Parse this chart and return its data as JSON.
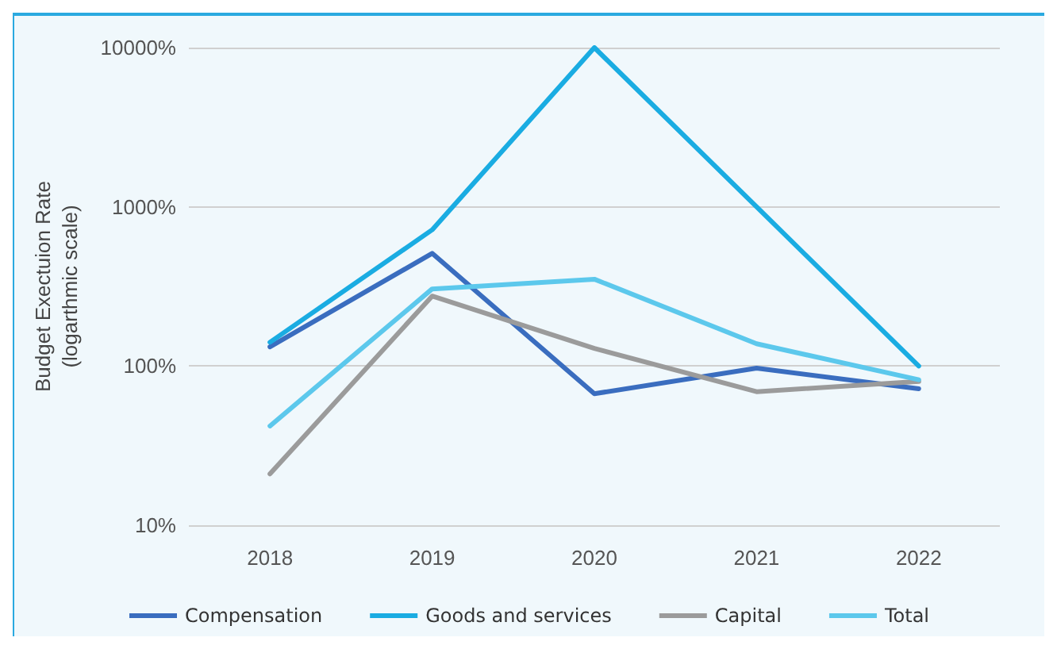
{
  "chart_data": {
    "type": "line",
    "ylabel": "Budget Exectuion Rate\n(logarthmic scale)",
    "categories": [
      "2018",
      "2019",
      "2020",
      "2021",
      "2022"
    ],
    "series": [
      {
        "name": "Compensation",
        "color": "#3a6dbf",
        "values": [
          132,
          510,
          67,
          97,
          72
        ]
      },
      {
        "name": "Goods and services",
        "color": "#1aace2",
        "values": [
          141,
          717,
          10000,
          1000,
          100
        ]
      },
      {
        "name": "Capital",
        "color": "#9b9b9b",
        "values": [
          21,
          275,
          129,
          69,
          80
        ]
      },
      {
        "name": "Total",
        "color": "#5cc8ec",
        "values": [
          42,
          305,
          351,
          138,
          82
        ]
      }
    ],
    "log": true,
    "ylim": [
      10,
      10000
    ],
    "yticks": [
      {
        "value": 10,
        "label": "10%"
      },
      {
        "value": 100,
        "label": "100%"
      },
      {
        "value": 1000,
        "label": "1000%"
      },
      {
        "value": 10000,
        "label": "10000%"
      }
    ],
    "grid": "y",
    "legend": "bottom",
    "marker": "none",
    "line_style": "solid"
  }
}
